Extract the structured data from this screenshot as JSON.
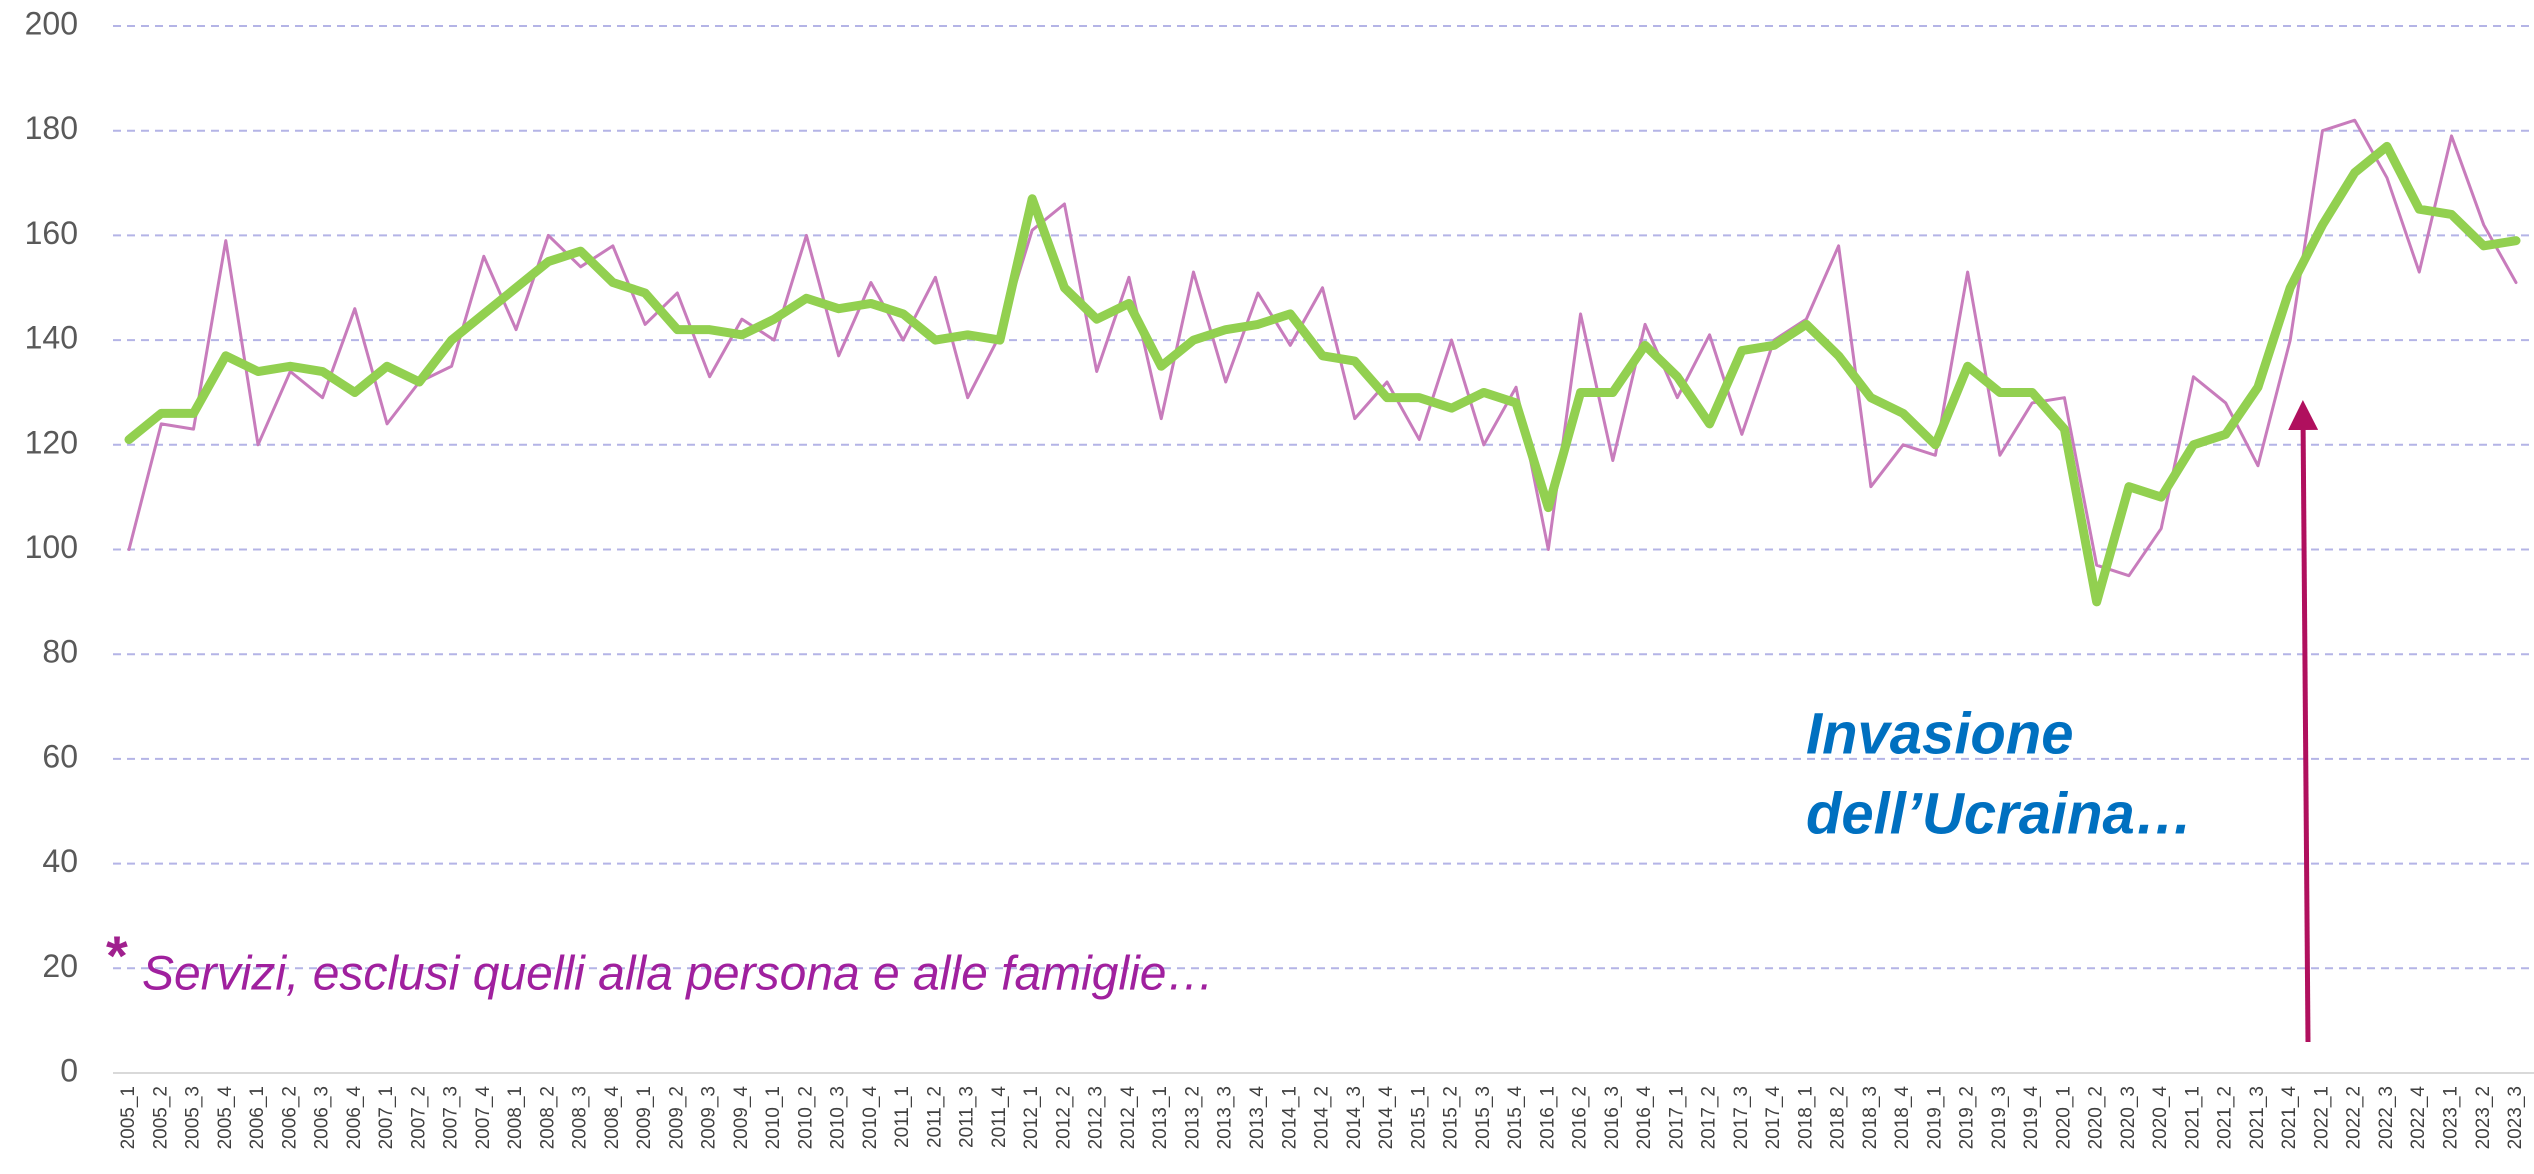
{
  "chart_data": {
    "type": "line",
    "categories": [
      "2005_1",
      "2005_2",
      "2005_3",
      "2005_4",
      "2006_1",
      "2006_2",
      "2006_3",
      "2006_4",
      "2007_1",
      "2007_2",
      "2007_3",
      "2007_4",
      "2008_1",
      "2008_2",
      "2008_3",
      "2008_4",
      "2009_1",
      "2009_2",
      "2009_3",
      "2009_4",
      "2010_1",
      "2010_2",
      "2010_3",
      "2010_4",
      "2011_1",
      "2011_2",
      "2011_3",
      "2011_4",
      "2012_1",
      "2012_2",
      "2012_3",
      "2012_4",
      "2013_1",
      "2013_2",
      "2013_3",
      "2013_4",
      "2014_1",
      "2014_2",
      "2014_3",
      "2014_4",
      "2015_1",
      "2015_2",
      "2015_3",
      "2015_4",
      "2016_1",
      "2016_2",
      "2016_3",
      "2016_4",
      "2017_1",
      "2017_2",
      "2017_3",
      "2017_4",
      "2018_1",
      "2018_2",
      "2018_3",
      "2018_4",
      "2019_1",
      "2019_2",
      "2019_3",
      "2019_4",
      "2020_1",
      "2020_2",
      "2020_3",
      "2020_4",
      "2021_1",
      "2021_2",
      "2021_3",
      "2021_4",
      "2022_1",
      "2022_2",
      "2022_3",
      "2022_4",
      "2023_1",
      "2023_2",
      "2023_3"
    ],
    "series": [
      {
        "color": "#c87cbc",
        "width": 3,
        "values": [
          100,
          124,
          123,
          159,
          120,
          134,
          129,
          146,
          124,
          132,
          135,
          156,
          142,
          160,
          154,
          158,
          143,
          149,
          133,
          144,
          140,
          160,
          137,
          151,
          140,
          152,
          129,
          141,
          161,
          166,
          134,
          152,
          125,
          153,
          132,
          149,
          139,
          150,
          125,
          132,
          121,
          140,
          120,
          131,
          100,
          145,
          117,
          143,
          129,
          141,
          122,
          140,
          144,
          158,
          112,
          120,
          118,
          153,
          118,
          128,
          129,
          97,
          95,
          104,
          133,
          128,
          116,
          140,
          180,
          182,
          171,
          153,
          179,
          162,
          151
        ]
      },
      {
        "color": "#92d050",
        "width": 9,
        "values": [
          121,
          126,
          126,
          137,
          134,
          135,
          134,
          130,
          135,
          132,
          140,
          145,
          150,
          155,
          157,
          151,
          149,
          142,
          142,
          141,
          144,
          148,
          146,
          147,
          145,
          140,
          141,
          140,
          167,
          150,
          144,
          147,
          135,
          140,
          142,
          143,
          145,
          137,
          136,
          129,
          129,
          127,
          130,
          128,
          108,
          130,
          130,
          139,
          133,
          124,
          138,
          139,
          143,
          137,
          129,
          126,
          120,
          135,
          130,
          130,
          123,
          90,
          112,
          110,
          120,
          122,
          131,
          150,
          162,
          172,
          177,
          165,
          164,
          158,
          159
        ]
      }
    ],
    "ylim": [
      0,
      200
    ],
    "yticks": [
      0,
      20,
      40,
      60,
      80,
      100,
      120,
      140,
      160,
      180,
      200
    ],
    "grid": true,
    "annotations": [
      "Invasione",
      "dell’Ucraina…",
      "*",
      "Servizi, esclusi quelli alla persona e alle famiglie…"
    ]
  }
}
